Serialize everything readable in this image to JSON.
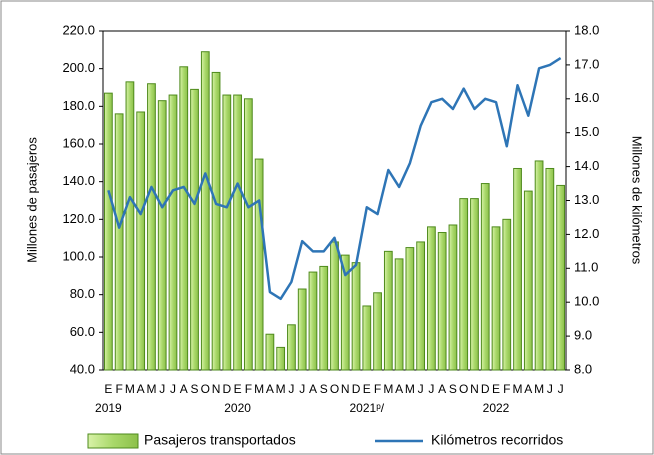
{
  "chart_data": {
    "type": "bar_line",
    "categories": [
      "E",
      "F",
      "M",
      "A",
      "M",
      "J",
      "J",
      "A",
      "S",
      "O",
      "N",
      "D",
      "E",
      "F",
      "M",
      "A",
      "M",
      "J",
      "J",
      "A",
      "S",
      "O",
      "N",
      "D",
      "E",
      "F",
      "M",
      "A",
      "M",
      "J",
      "J",
      "A",
      "S",
      "O",
      "N",
      "D",
      "E",
      "F",
      "M",
      "A",
      "M",
      "J",
      "J"
    ],
    "x_group_labels": [
      "2019",
      null,
      null,
      null,
      null,
      null,
      null,
      null,
      null,
      null,
      null,
      null,
      "2020",
      null,
      null,
      null,
      null,
      null,
      null,
      null,
      null,
      null,
      null,
      null,
      "2021ᵖ/",
      null,
      null,
      null,
      null,
      null,
      null,
      null,
      null,
      null,
      null,
      null,
      "2022",
      null,
      null,
      null,
      null,
      null,
      null
    ],
    "series": [
      {
        "name": "Pasajeros transportados",
        "type": "bar",
        "color": "#b4e07a",
        "values": [
          187,
          176,
          193,
          177,
          192,
          183,
          186,
          201,
          189,
          209,
          198,
          186,
          186,
          184,
          152,
          59,
          52,
          64,
          83,
          92,
          95,
          108,
          101,
          97,
          74,
          81,
          103,
          99,
          105,
          108,
          116,
          113,
          117,
          131,
          131,
          139,
          116,
          120,
          147,
          135,
          151,
          147,
          138
        ]
      },
      {
        "name": "Kilómetros recorridos",
        "type": "line",
        "axis": "y2",
        "color": "#2e75b6",
        "values": [
          13.3,
          12.2,
          13.1,
          12.6,
          13.4,
          12.8,
          13.3,
          13.4,
          12.9,
          13.8,
          12.9,
          12.8,
          13.5,
          12.8,
          13.0,
          10.3,
          10.1,
          10.6,
          11.8,
          11.5,
          11.5,
          11.9,
          10.8,
          11.1,
          12.8,
          12.6,
          13.9,
          13.4,
          14.1,
          15.2,
          15.9,
          16.0,
          15.7,
          16.3,
          15.7,
          16.0,
          15.9,
          14.6,
          16.4,
          15.5,
          16.9,
          17.0,
          17.2
        ]
      }
    ],
    "ylabel": "Millones de pasajeros",
    "y2label": "Millones de kilómetros",
    "ylim": [
      40,
      220
    ],
    "yticks": [
      {
        "value": 40,
        "label": "40.0"
      },
      {
        "value": 60,
        "label": "60.0"
      },
      {
        "value": 80,
        "label": "80.0"
      },
      {
        "value": 100,
        "label": "100.0"
      },
      {
        "value": 120,
        "label": "120.0"
      },
      {
        "value": 140,
        "label": "140.0"
      },
      {
        "value": 160,
        "label": "160.0"
      },
      {
        "value": 180,
        "label": "180.0"
      },
      {
        "value": 200,
        "label": "200.0"
      },
      {
        "value": 220,
        "label": "220.0"
      }
    ],
    "y2lim": [
      8,
      18
    ],
    "y2ticks": [
      {
        "value": 8,
        "label": "8.0"
      },
      {
        "value": 9,
        "label": "9.0"
      },
      {
        "value": 10,
        "label": "10.0"
      },
      {
        "value": 11,
        "label": "11.0"
      },
      {
        "value": 12,
        "label": "12.0"
      },
      {
        "value": 13,
        "label": "13.0"
      },
      {
        "value": 14,
        "label": "14.0"
      },
      {
        "value": 15,
        "label": "15.0"
      },
      {
        "value": 16,
        "label": "16.0"
      },
      {
        "value": 17,
        "label": "17.0"
      },
      {
        "value": 18,
        "label": "18.0"
      }
    ],
    "grid": false,
    "legend": "bottom"
  }
}
